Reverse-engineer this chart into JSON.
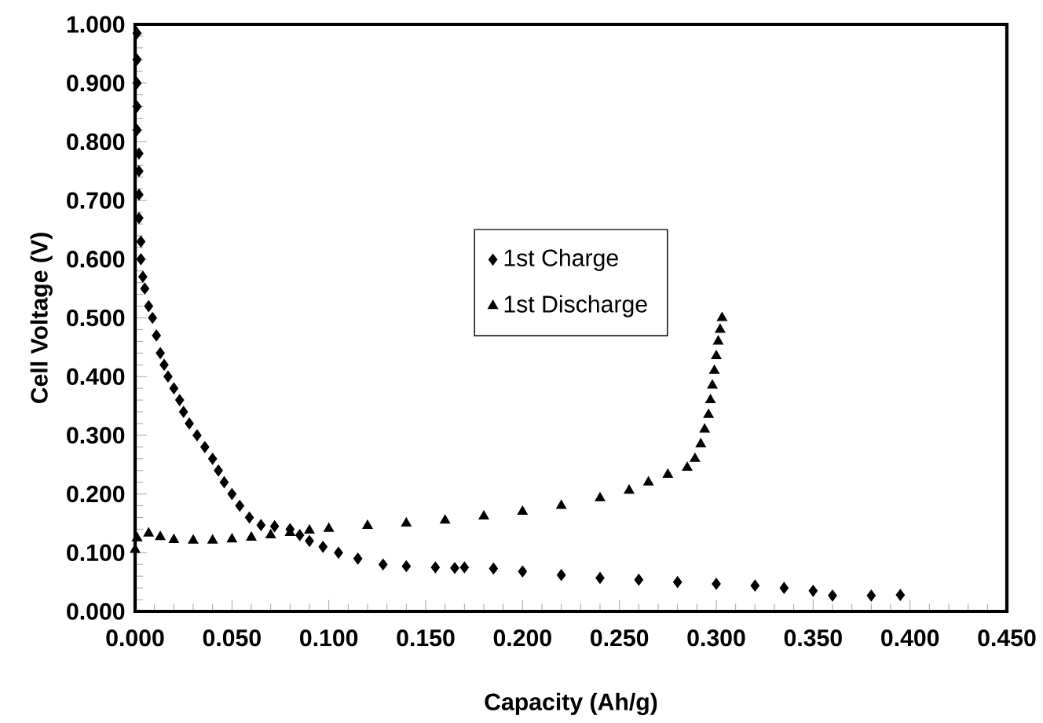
{
  "chart_data": {
    "type": "scatter",
    "xlabel": "Capacity (Ah/g)",
    "ylabel": "Cell Voltage (V)",
    "xlim": [
      0,
      0.45
    ],
    "ylim": [
      0,
      1.0
    ],
    "xticks": [
      {
        "value": 0,
        "label": "0.000"
      },
      {
        "value": 0.05,
        "label": "0.050"
      },
      {
        "value": 0.1,
        "label": "0.100"
      },
      {
        "value": 0.15,
        "label": "0.150"
      },
      {
        "value": 0.2,
        "label": "0.200"
      },
      {
        "value": 0.25,
        "label": "0.250"
      },
      {
        "value": 0.3,
        "label": "0.300"
      },
      {
        "value": 0.35,
        "label": "0.350"
      },
      {
        "value": 0.4,
        "label": "0.400"
      },
      {
        "value": 0.45,
        "label": "0.450"
      }
    ],
    "yticks": [
      {
        "value": 0,
        "label": "0.000"
      },
      {
        "value": 0.1,
        "label": "0.100"
      },
      {
        "value": 0.2,
        "label": "0.200"
      },
      {
        "value": 0.3,
        "label": "0.300"
      },
      {
        "value": 0.4,
        "label": "0.400"
      },
      {
        "value": 0.5,
        "label": "0.500"
      },
      {
        "value": 0.6,
        "label": "0.600"
      },
      {
        "value": 0.7,
        "label": "0.700"
      },
      {
        "value": 0.8,
        "label": "0.800"
      },
      {
        "value": 0.9,
        "label": "0.900"
      },
      {
        "value": 1.0,
        "label": "1.000"
      }
    ],
    "grid": false,
    "legend": "center",
    "series": [
      {
        "name": "1st Charge",
        "color": "#000000",
        "marker": "diamond",
        "x": [
          0.001,
          0.001,
          0.001,
          0.001,
          0.001,
          0.002,
          0.002,
          0.002,
          0.002,
          0.003,
          0.003,
          0.004,
          0.005,
          0.007,
          0.009,
          0.011,
          0.013,
          0.015,
          0.017,
          0.02,
          0.023,
          0.025,
          0.028,
          0.032,
          0.036,
          0.04,
          0.043,
          0.046,
          0.05,
          0.054,
          0.059,
          0.065,
          0.072,
          0.08,
          0.085,
          0.09,
          0.097,
          0.105,
          0.115,
          0.128,
          0.14,
          0.155,
          0.165,
          0.17,
          0.185,
          0.2,
          0.22,
          0.24,
          0.26,
          0.28,
          0.3,
          0.32,
          0.335,
          0.35,
          0.36,
          0.38,
          0.395
        ],
        "values": [
          0.985,
          0.94,
          0.9,
          0.86,
          0.82,
          0.78,
          0.75,
          0.71,
          0.67,
          0.63,
          0.6,
          0.57,
          0.55,
          0.52,
          0.5,
          0.47,
          0.44,
          0.42,
          0.4,
          0.38,
          0.36,
          0.34,
          0.32,
          0.3,
          0.28,
          0.26,
          0.24,
          0.22,
          0.2,
          0.18,
          0.16,
          0.147,
          0.145,
          0.14,
          0.13,
          0.12,
          0.11,
          0.1,
          0.09,
          0.08,
          0.077,
          0.075,
          0.074,
          0.075,
          0.073,
          0.068,
          0.062,
          0.057,
          0.054,
          0.05,
          0.047,
          0.044,
          0.04,
          0.035,
          0.027,
          0.027,
          0.028
        ]
      },
      {
        "name": "1st Discharge",
        "color": "#000000",
        "marker": "triangle",
        "x": [
          0,
          0.001,
          0.007,
          0.013,
          0.02,
          0.03,
          0.04,
          0.05,
          0.06,
          0.07,
          0.08,
          0.09,
          0.1,
          0.12,
          0.14,
          0.16,
          0.18,
          0.2,
          0.22,
          0.24,
          0.255,
          0.265,
          0.275,
          0.285,
          0.289,
          0.292,
          0.294,
          0.296,
          0.297,
          0.298,
          0.299,
          0.3,
          0.301,
          0.302,
          0.303
        ],
        "values": [
          0.105,
          0.125,
          0.133,
          0.127,
          0.122,
          0.121,
          0.121,
          0.123,
          0.126,
          0.13,
          0.134,
          0.138,
          0.141,
          0.146,
          0.15,
          0.155,
          0.162,
          0.17,
          0.18,
          0.193,
          0.206,
          0.22,
          0.233,
          0.245,
          0.26,
          0.285,
          0.31,
          0.335,
          0.36,
          0.385,
          0.41,
          0.435,
          0.46,
          0.48,
          0.5
        ]
      }
    ]
  }
}
